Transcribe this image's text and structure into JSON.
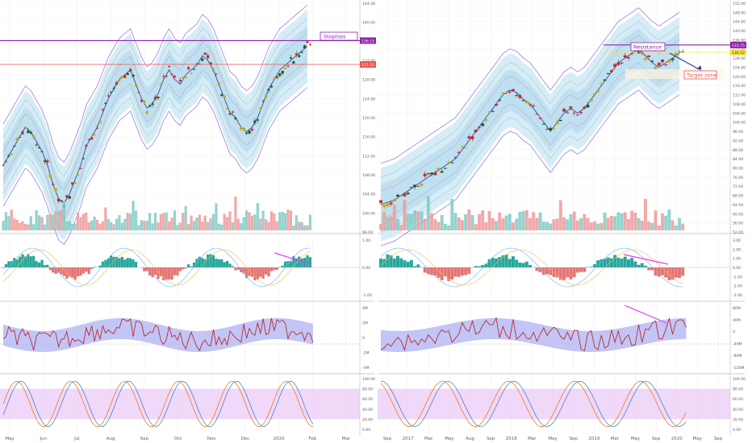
{
  "annotations": {
    "stoploss": "Stoploss",
    "resistance": "Resistance",
    "target_zone": "Target zone"
  },
  "colors": {
    "up": "#26a69a",
    "up_dark": "#1b5e20",
    "down": "#c62828",
    "vol_up": "#80cbc4",
    "vol_down": "#ef9a9a",
    "band_fill": "#d6ecf7",
    "band_mid": "#bfe0f0",
    "envelope": "#9c7fe0",
    "magenta": "#e040fb",
    "purple": "#8e24aa",
    "red_line": "#ef5350",
    "stoch_fill": "#e9c8f5",
    "navy": "#283593"
  },
  "chart_data": [
    {
      "type": "line",
      "pane": "left-price",
      "y_ticks": [
        "144.00",
        "140.00",
        "136.00",
        "132.00",
        "128.00",
        "124.00",
        "120.00",
        "116.00",
        "112.00",
        "108.00",
        "104.00",
        "100.00",
        "96.00"
      ],
      "ylim": [
        96,
        144
      ],
      "price_tags": [
        {
          "label": "136.15",
          "value": 136.15,
          "color": "#8e24aa"
        },
        {
          "label": "131.15",
          "value": 131.15,
          "color": "#ef5350"
        }
      ],
      "x_ticks": [
        "May",
        "Jun",
        "Jul",
        "Aug",
        "Sep",
        "Oct",
        "Nov",
        "Dec",
        "2020",
        "Feb",
        "Mar"
      ],
      "close_series": [
        110,
        112,
        114,
        116,
        118,
        117,
        115,
        113,
        110,
        106,
        103,
        102,
        104,
        107,
        110,
        114,
        116,
        118,
        121,
        124,
        126,
        128,
        129,
        130,
        127,
        124,
        122,
        123,
        125,
        128,
        130,
        128,
        127,
        129,
        130,
        131,
        133,
        132,
        130,
        127,
        124,
        121,
        120,
        118,
        117,
        118,
        120,
        123,
        126,
        128,
        130,
        131,
        132,
        133,
        134,
        135
      ],
      "macd_ticks": [
        "1.00",
        "0.00",
        "-1.00"
      ],
      "osc_ticks": [
        "4M",
        "2M",
        "0",
        "-2M",
        "-4M"
      ],
      "stoch_ticks": [
        "100.00",
        "80.00",
        "60.00",
        "40.00",
        "20.00",
        "0.00"
      ]
    },
    {
      "type": "line",
      "pane": "right-price",
      "y_ticks": [
        "152.00",
        "148.00",
        "144.00",
        "140.00",
        "136.00",
        "132.00",
        "128.00",
        "124.00",
        "120.00",
        "116.00",
        "112.00",
        "108.00",
        "104.00",
        "100.00",
        "96.00",
        "92.00",
        "88.00",
        "84.00",
        "80.00",
        "76.00",
        "72.00",
        "68.00",
        "64.00",
        "60.00",
        "56.00",
        "52.00"
      ],
      "ylim": [
        52,
        152
      ],
      "price_tags": [
        {
          "label": "133.75",
          "value": 133.75,
          "color": "#8e24aa"
        },
        {
          "label": "130.52",
          "value": 130.52,
          "color": "#f9e04b"
        }
      ],
      "x_ticks": [
        "Sep",
        "2017",
        "Mar",
        "May",
        "Aug",
        "Sep",
        "2018",
        "Mar",
        "May",
        "Sep",
        "2019",
        "Mar",
        "May",
        "Sep",
        "2020",
        "May",
        "Sep"
      ],
      "close_series": [
        64,
        65,
        66,
        68,
        70,
        72,
        74,
        76,
        78,
        80,
        82,
        84,
        88,
        92,
        96,
        100,
        104,
        108,
        112,
        114,
        113,
        110,
        108,
        104,
        100,
        96,
        100,
        104,
        106,
        104,
        106,
        110,
        114,
        118,
        122,
        126,
        128,
        130,
        132,
        129,
        126,
        124,
        126,
        128,
        130
      ],
      "macd_ticks": [
        "3.00",
        "2.00",
        "1.00",
        "0.00",
        "-1.00",
        "-2.00",
        "-3.00"
      ],
      "osc_ticks": [
        "80M",
        "40M",
        "0",
        "-40M",
        "-80M",
        "-120M"
      ],
      "stoch_ticks": [
        "100.00",
        "80.00",
        "60.00",
        "40.00",
        "20.00",
        "0.00"
      ]
    }
  ]
}
